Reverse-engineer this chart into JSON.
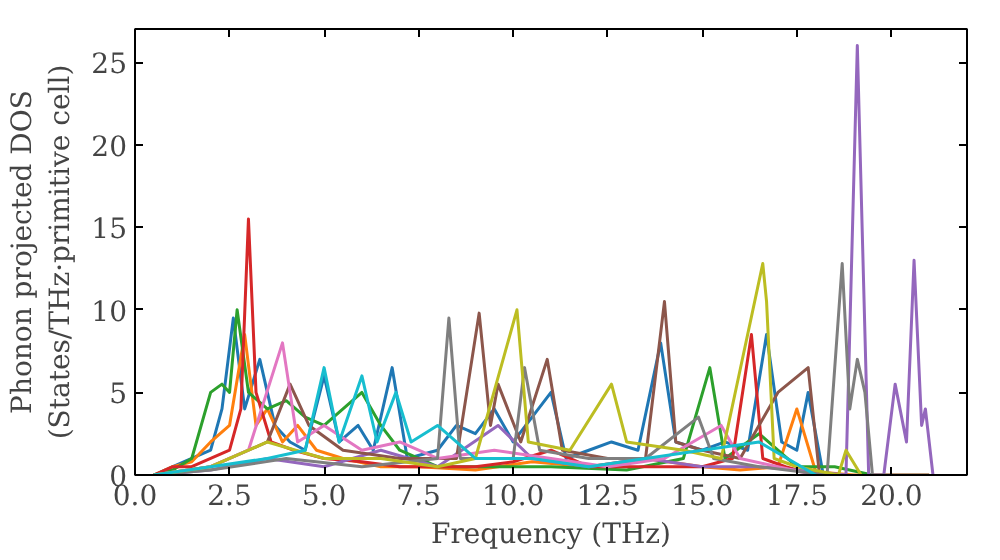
{
  "chart_data": {
    "type": "line",
    "xlabel": "Frequency (THz)",
    "ylabel": "Phonon projected DOS\n(States/THz·primitive cell)",
    "xlim": [
      0,
      22
    ],
    "ylim": [
      0,
      27
    ],
    "xticks": [
      {
        "value": 0,
        "label": "0.0"
      },
      {
        "value": 2.5,
        "label": "2.5"
      },
      {
        "value": 5,
        "label": "5.0"
      },
      {
        "value": 7.5,
        "label": "7.5"
      },
      {
        "value": 10,
        "label": "10.0"
      },
      {
        "value": 12.5,
        "label": "12.5"
      },
      {
        "value": 15,
        "label": "15.0"
      },
      {
        "value": 17.5,
        "label": "17.5"
      },
      {
        "value": 20,
        "label": "20.0"
      }
    ],
    "yticks": [
      0,
      5,
      10,
      15,
      20,
      25
    ],
    "line_style": "solid",
    "marker": "none",
    "series": [
      {
        "color": "#1f77b4",
        "x": [
          0.5,
          1.0,
          1.5,
          2.0,
          2.3,
          2.6,
          2.9,
          3.3,
          3.7,
          4.1,
          4.5,
          5.0,
          5.4,
          5.9,
          6.3,
          6.8,
          7.2,
          8.0,
          8.5,
          9.0,
          9.5,
          10.0,
          10.5,
          11.0,
          11.4,
          12.0,
          12.6,
          13.3,
          13.9,
          14.3,
          15.0,
          15.6,
          16.2,
          16.7,
          17.1,
          17.5,
          17.8,
          18.2
        ],
        "values": [
          0,
          0.5,
          1,
          1.5,
          4,
          9.5,
          4,
          7,
          3,
          2,
          1.5,
          6,
          2,
          3,
          1.5,
          6.5,
          1,
          1.5,
          3,
          2.5,
          4,
          2,
          3.5,
          5,
          1,
          1.5,
          2,
          1.5,
          8,
          2,
          1.5,
          2,
          1.5,
          8.5,
          2,
          1.5,
          5,
          0
        ]
      },
      {
        "color": "#ff7f0e",
        "x": [
          0.5,
          1.0,
          1.5,
          2.0,
          2.5,
          2.9,
          3.2,
          3.5,
          3.9,
          4.3,
          4.8,
          5.5,
          6.5,
          7.5,
          9.0,
          10.5,
          12.0,
          13.5,
          15.0,
          16.0,
          17.0,
          17.5,
          18.0,
          19.0,
          21.0
        ],
        "values": [
          0,
          0.5,
          0.8,
          2,
          3,
          8.5,
          3,
          4,
          2,
          3,
          1.5,
          1,
          0.5,
          0.5,
          0.3,
          0.8,
          0.5,
          1,
          0.5,
          0.3,
          0.5,
          4,
          0.2,
          0,
          0
        ]
      },
      {
        "color": "#2ca02c",
        "x": [
          0.5,
          1.0,
          1.5,
          2.0,
          2.3,
          2.5,
          2.7,
          3.0,
          3.5,
          4.0,
          4.5,
          5.0,
          5.5,
          6.0,
          6.5,
          7.0,
          8.0,
          9.0,
          11.0,
          13.0,
          14.5,
          15.2,
          15.6,
          16.5,
          17.5,
          18.5,
          19.5
        ],
        "values": [
          0,
          0.3,
          1,
          5,
          5.5,
          5,
          10,
          5,
          4,
          4.5,
          3.5,
          3,
          4,
          5,
          3,
          1.5,
          0.5,
          0.5,
          0.5,
          0.3,
          1,
          6.5,
          1,
          2.5,
          0.5,
          0.5,
          0
        ]
      },
      {
        "color": "#d62728",
        "x": [
          0.5,
          1.0,
          1.5,
          2.0,
          2.5,
          2.8,
          3.0,
          3.2,
          3.6,
          4.2,
          5.0,
          6.0,
          7.0,
          8.0,
          9.0,
          10.0,
          11.0,
          12.0,
          13.0,
          14.0,
          15.0,
          15.8,
          16.3,
          16.6,
          17.2,
          18.0
        ],
        "values": [
          0,
          0.5,
          0.5,
          1,
          1.5,
          4,
          15.5,
          5,
          2,
          1.5,
          1,
          0.8,
          0.5,
          0.5,
          0.5,
          0.8,
          1.5,
          0.5,
          0.5,
          0.5,
          0.5,
          1,
          8.5,
          1,
          0.5,
          0
        ]
      },
      {
        "color": "#9467bd",
        "x": [
          0.5,
          2.0,
          3.5,
          5.0,
          6.5,
          8.0,
          9.6,
          10.5,
          12.0,
          13.5,
          15.0,
          16.5,
          18.0,
          18.8,
          19.1,
          19.4,
          19.8,
          20.1,
          20.4,
          20.6,
          20.8,
          20.9,
          21.1
        ],
        "values": [
          0,
          0.3,
          1,
          0.5,
          1.5,
          0.5,
          3,
          1,
          0.5,
          1,
          0.5,
          0.5,
          0.2,
          0,
          26,
          0,
          0,
          5.5,
          2,
          13,
          3,
          4,
          0
        ]
      },
      {
        "color": "#8c564b",
        "x": [
          0.5,
          2.0,
          3.5,
          4.1,
          4.6,
          5.5,
          7.0,
          8.5,
          9.1,
          9.4,
          9.6,
          10.2,
          10.9,
          11.3,
          12.5,
          13.5,
          14.0,
          14.3,
          15.0,
          16.0,
          17.0,
          17.8,
          18.1
        ],
        "values": [
          0,
          0.5,
          2,
          5.5,
          3,
          1.5,
          1,
          1,
          9.8,
          3,
          5.5,
          2,
          7,
          1.5,
          1,
          1,
          10.5,
          2,
          1.5,
          1,
          5,
          6.5,
          0
        ]
      },
      {
        "color": "#e377c2",
        "x": [
          0.5,
          2.0,
          3.0,
          3.9,
          4.3,
          5.0,
          6.0,
          7.0,
          8.0,
          9.5,
          11.0,
          12.5,
          14.0,
          15.5,
          16.0,
          17.0,
          18.0
        ],
        "values": [
          0,
          0.5,
          1.5,
          8,
          2,
          3,
          1.5,
          2,
          1,
          1.5,
          1,
          0.5,
          1,
          3,
          1,
          0.5,
          0
        ]
      },
      {
        "color": "#7f7f7f",
        "x": [
          0.5,
          2.0,
          4.0,
          6.0,
          8.0,
          8.3,
          8.6,
          10.0,
          10.3,
          10.7,
          12.0,
          13.5,
          14.9,
          15.3,
          16.5,
          18.3,
          18.7,
          18.9,
          19.1,
          19.3,
          19.5,
          21.0
        ],
        "values": [
          0,
          0.3,
          1,
          0.5,
          1,
          9.5,
          1,
          1,
          6.5,
          1.5,
          1,
          1,
          3.5,
          1,
          0.5,
          0,
          12.8,
          4,
          7,
          5,
          0,
          0
        ]
      },
      {
        "color": "#bcbd22",
        "x": [
          0.5,
          2.0,
          3.5,
          5.0,
          6.5,
          8.0,
          9.0,
          10.1,
          10.4,
          11.5,
          12.6,
          13.0,
          14.5,
          15.5,
          16.6,
          16.7,
          16.9,
          17.5,
          18.6,
          18.8,
          19.2
        ],
        "values": [
          0,
          0.5,
          2,
          1,
          1,
          0.5,
          1,
          10,
          2,
          1.5,
          5.5,
          2,
          1.5,
          1,
          12.8,
          10.5,
          1,
          0.5,
          0,
          1.5,
          0
        ]
      },
      {
        "color": "#17becf",
        "x": [
          0.5,
          2.0,
          3.5,
          4.5,
          5.0,
          5.4,
          6.0,
          6.4,
          6.9,
          7.3,
          8.0,
          9.0,
          10.5,
          12.0,
          13.5,
          15.0,
          16.5,
          18.0
        ],
        "values": [
          0,
          0.5,
          1,
          1.5,
          6.5,
          2,
          6,
          2,
          5,
          2,
          3,
          1,
          1,
          0.5,
          1,
          1.5,
          2,
          0
        ]
      }
    ]
  }
}
